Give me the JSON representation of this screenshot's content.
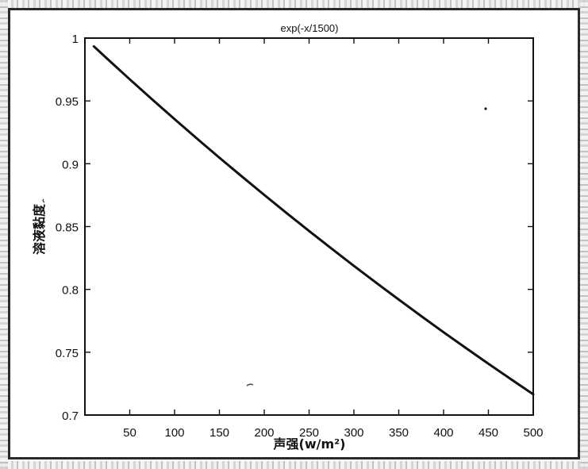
{
  "chart_data": {
    "type": "line",
    "title": "exp(-x/1500)",
    "xlabel": "声强(w/m²)",
    "ylabel": "溶液黏度",
    "xlim": [
      0,
      500
    ],
    "ylim": [
      0.7,
      1.0
    ],
    "x_ticks": [
      50,
      100,
      150,
      200,
      250,
      300,
      350,
      400,
      450,
      500
    ],
    "y_ticks": [
      0.7,
      0.75,
      0.8,
      0.85,
      0.9,
      0.95,
      1
    ],
    "y_tick_labels": [
      "0.7",
      "0.75",
      "0.8",
      "0.85",
      "0.9",
      "0.95",
      "1"
    ],
    "grid": false,
    "legend": "none",
    "line_color": "#111111",
    "series": [
      {
        "x": [
          10,
          25,
          50,
          75,
          100,
          125,
          150,
          175,
          200,
          225,
          250,
          275,
          300,
          325,
          350,
          375,
          400,
          425,
          450,
          475,
          500
        ],
        "values": [
          0.9934,
          0.9835,
          0.9672,
          0.9512,
          0.9355,
          0.92,
          0.9048,
          0.8899,
          0.8752,
          0.8607,
          0.8465,
          0.8325,
          0.8187,
          0.8052,
          0.7919,
          0.7788,
          0.7659,
          0.7533,
          0.7408,
          0.7286,
          0.7165
        ]
      }
    ]
  }
}
